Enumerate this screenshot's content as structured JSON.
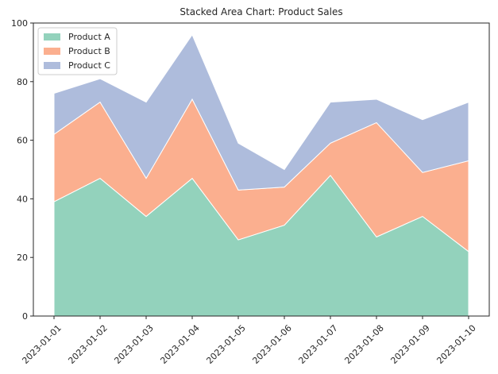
{
  "chart_data": {
    "type": "area",
    "stacked": true,
    "title": "Stacked Area Chart: Product Sales",
    "xlabel": "",
    "ylabel": "",
    "categories": [
      "2023-01-01",
      "2023-01-02",
      "2023-01-03",
      "2023-01-04",
      "2023-01-05",
      "2023-01-06",
      "2023-01-07",
      "2023-01-08",
      "2023-01-09",
      "2023-01-10"
    ],
    "series": [
      {
        "name": "Product A",
        "values": [
          39,
          47,
          34,
          47,
          26,
          31,
          48,
          27,
          34,
          22
        ],
        "color": "#93d2bc"
      },
      {
        "name": "Product B",
        "values": [
          23,
          26,
          13,
          27,
          17,
          13,
          11,
          39,
          15,
          31
        ],
        "color": "#fbaf8f"
      },
      {
        "name": "Product C",
        "values": [
          14,
          8,
          26,
          22,
          16,
          6,
          14,
          8,
          18,
          20
        ],
        "color": "#aebcdc"
      }
    ],
    "ylim": [
      0,
      100
    ],
    "yticks": [
      0,
      20,
      40,
      60,
      80,
      100
    ],
    "grid": false,
    "legend_position": "top-left"
  }
}
